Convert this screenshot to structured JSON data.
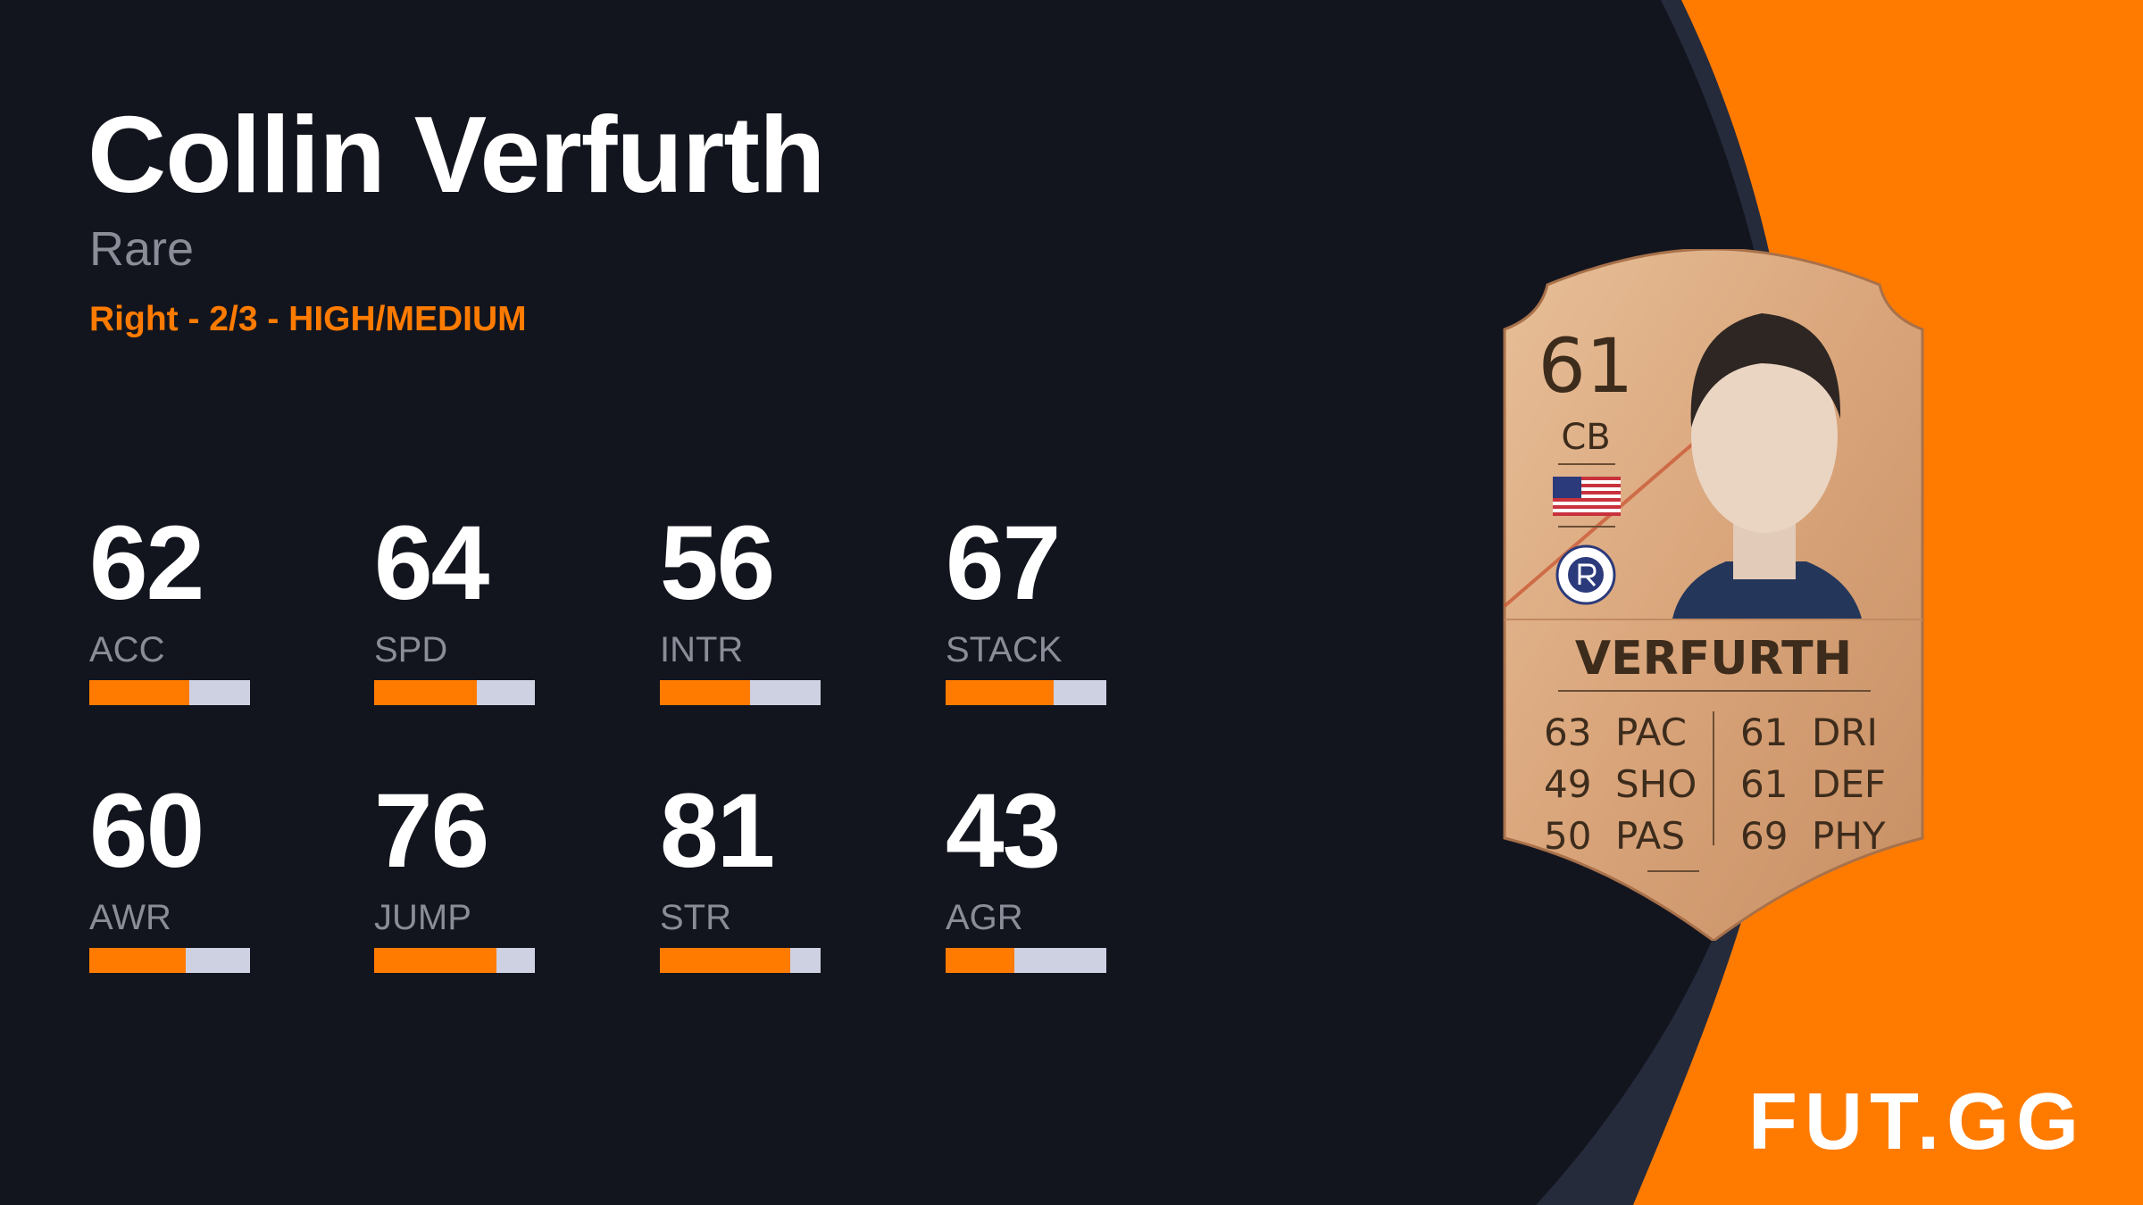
{
  "player": {
    "name": "Collin Verfurth",
    "rarity": "Rare",
    "details": "Right - 2/3 - HIGH/MEDIUM"
  },
  "stats": [
    {
      "label": "ACC",
      "value": 62,
      "fill_pct": 62
    },
    {
      "label": "SPD",
      "value": 64,
      "fill_pct": 64
    },
    {
      "label": "INTR",
      "value": 56,
      "fill_pct": 56
    },
    {
      "label": "STACK",
      "value": 67,
      "fill_pct": 67
    },
    {
      "label": "AWR",
      "value": 60,
      "fill_pct": 60
    },
    {
      "label": "JUMP",
      "value": 76,
      "fill_pct": 76
    },
    {
      "label": "STR",
      "value": 81,
      "fill_pct": 81
    },
    {
      "label": "AGR",
      "value": 43,
      "fill_pct": 43
    }
  ],
  "card": {
    "rating": "61",
    "position": "CB",
    "name": "VERFURTH",
    "nation_flag": "usa-flag-icon",
    "club_badge": "new-england-revolution-badge",
    "left_stats": [
      {
        "value": "63",
        "label": "PAC"
      },
      {
        "value": "49",
        "label": "SHO"
      },
      {
        "value": "50",
        "label": "PAS"
      }
    ],
    "right_stats": [
      {
        "value": "61",
        "label": "DRI"
      },
      {
        "value": "61",
        "label": "DEF"
      },
      {
        "value": "69",
        "label": "PHY"
      }
    ]
  },
  "brand": {
    "logo": "FUT.GG"
  },
  "colors": {
    "background": "#13151e",
    "accent": "#ff7b00",
    "bar_track": "#cdd1e2",
    "label": "#8a8c97",
    "card_gold": "#d9a47a"
  }
}
